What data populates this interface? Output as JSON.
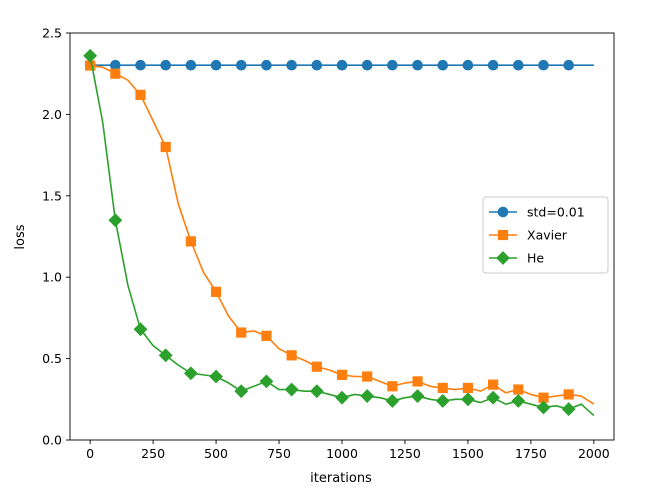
{
  "chart_data": {
    "type": "line",
    "title": "",
    "xlabel": "iterations",
    "ylabel": "loss",
    "xlim": [
      -80,
      2080
    ],
    "ylim": [
      0.0,
      2.5
    ],
    "xticks": [
      0,
      250,
      500,
      750,
      1000,
      1250,
      1500,
      1750,
      2000
    ],
    "xtick_labels": [
      "0",
      "250",
      "500",
      "750",
      "1000",
      "1250",
      "1500",
      "1750",
      "2000"
    ],
    "yticks": [
      0.0,
      0.5,
      1.0,
      1.5,
      2.0,
      2.5
    ],
    "ytick_labels": [
      "0.0",
      "0.5",
      "1.0",
      "1.5",
      "2.0",
      "2.5"
    ],
    "grid": false,
    "legend_position": "center-right",
    "series": [
      {
        "name": "std=0.01",
        "color": "#1f77b4",
        "marker": "circle",
        "marker_x": [
          0,
          100,
          200,
          300,
          400,
          500,
          600,
          700,
          800,
          900,
          1000,
          1100,
          1200,
          1300,
          1400,
          1500,
          1600,
          1700,
          1800,
          1900
        ],
        "marker_y": [
          2.302,
          2.302,
          2.302,
          2.302,
          2.302,
          2.302,
          2.302,
          2.302,
          2.302,
          2.302,
          2.302,
          2.302,
          2.302,
          2.302,
          2.302,
          2.302,
          2.302,
          2.302,
          2.302,
          2.302
        ],
        "x": [
          0,
          2000
        ],
        "y": [
          2.302,
          2.302
        ]
      },
      {
        "name": "Xavier",
        "color": "#ff7f0e",
        "marker": "square",
        "marker_x": [
          0,
          100,
          200,
          300,
          400,
          500,
          600,
          700,
          800,
          900,
          1000,
          1100,
          1200,
          1300,
          1400,
          1500,
          1600,
          1700,
          1800,
          1900
        ],
        "marker_y": [
          2.3,
          2.25,
          2.12,
          1.8,
          1.22,
          0.91,
          0.66,
          0.64,
          0.52,
          0.45,
          0.4,
          0.39,
          0.33,
          0.36,
          0.32,
          0.32,
          0.34,
          0.31,
          0.26,
          0.28
        ],
        "x": [
          0,
          50,
          100,
          150,
          200,
          250,
          300,
          350,
          400,
          450,
          500,
          550,
          600,
          650,
          700,
          750,
          800,
          850,
          900,
          950,
          1000,
          1050,
          1100,
          1150,
          1200,
          1250,
          1300,
          1350,
          1400,
          1450,
          1500,
          1550,
          1600,
          1650,
          1700,
          1750,
          1800,
          1850,
          1900,
          1950,
          2000
        ],
        "y": [
          2.3,
          2.29,
          2.25,
          2.21,
          2.12,
          1.96,
          1.8,
          1.45,
          1.22,
          1.03,
          0.91,
          0.76,
          0.66,
          0.67,
          0.64,
          0.56,
          0.52,
          0.49,
          0.45,
          0.43,
          0.4,
          0.39,
          0.39,
          0.36,
          0.33,
          0.35,
          0.36,
          0.33,
          0.32,
          0.31,
          0.32,
          0.3,
          0.34,
          0.29,
          0.31,
          0.28,
          0.26,
          0.27,
          0.28,
          0.27,
          0.22
        ]
      },
      {
        "name": "He",
        "color": "#2ca02c",
        "marker": "diamond",
        "marker_x": [
          0,
          100,
          200,
          300,
          400,
          500,
          600,
          700,
          800,
          900,
          1000,
          1100,
          1200,
          1300,
          1400,
          1500,
          1600,
          1700,
          1800,
          1900
        ],
        "marker_y": [
          2.36,
          1.35,
          0.68,
          0.52,
          0.41,
          0.39,
          0.3,
          0.36,
          0.31,
          0.3,
          0.26,
          0.27,
          0.24,
          0.27,
          0.24,
          0.25,
          0.26,
          0.24,
          0.2,
          0.19
        ],
        "x": [
          0,
          50,
          100,
          150,
          200,
          250,
          300,
          350,
          400,
          450,
          500,
          550,
          600,
          650,
          700,
          750,
          800,
          850,
          900,
          950,
          1000,
          1050,
          1100,
          1150,
          1200,
          1250,
          1300,
          1350,
          1400,
          1450,
          1500,
          1550,
          1600,
          1650,
          1700,
          1750,
          1800,
          1850,
          1900,
          1950,
          2000
        ],
        "y": [
          2.36,
          1.95,
          1.35,
          0.95,
          0.68,
          0.58,
          0.52,
          0.46,
          0.41,
          0.4,
          0.39,
          0.35,
          0.3,
          0.33,
          0.36,
          0.31,
          0.31,
          0.3,
          0.3,
          0.28,
          0.26,
          0.28,
          0.27,
          0.26,
          0.24,
          0.26,
          0.27,
          0.25,
          0.24,
          0.25,
          0.25,
          0.23,
          0.26,
          0.22,
          0.24,
          0.22,
          0.2,
          0.21,
          0.19,
          0.22,
          0.15
        ]
      }
    ]
  }
}
